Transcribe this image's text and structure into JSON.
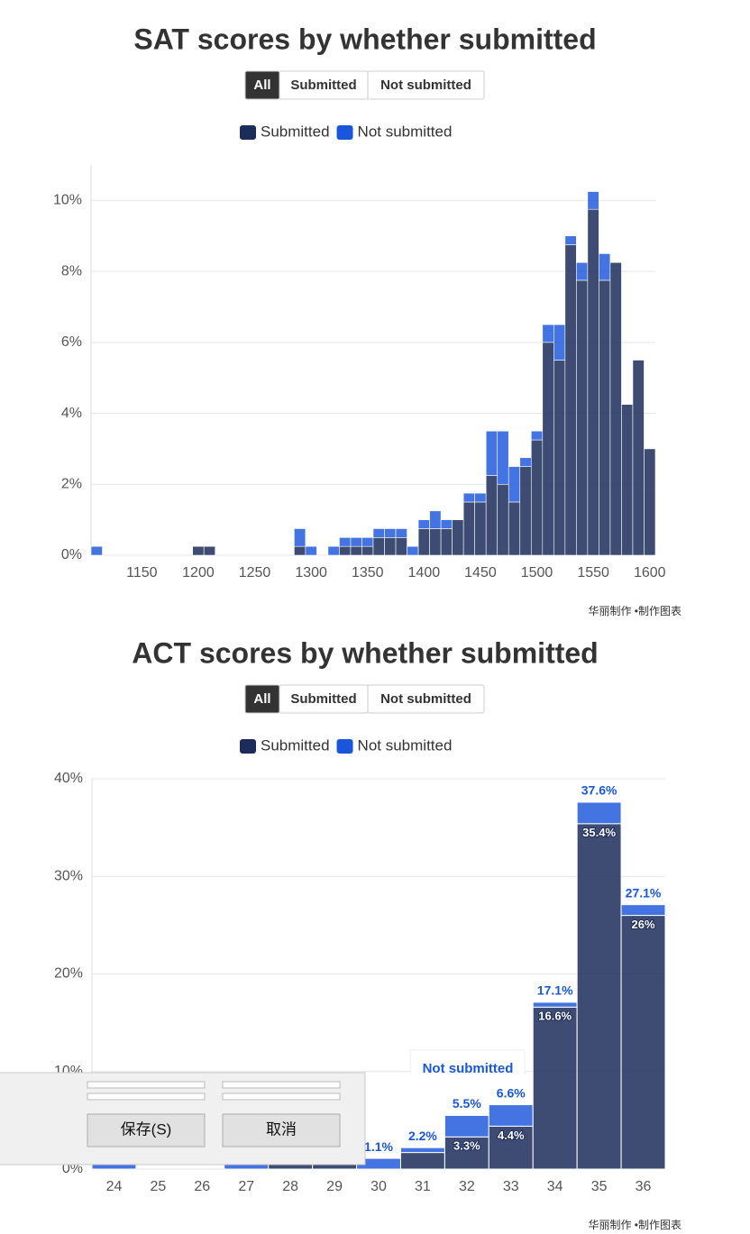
{
  "chart_data": [
    {
      "type": "histogram",
      "title": "SAT scores by whether submitted",
      "buttons": [
        "All",
        "Submitted",
        "Not submitted"
      ],
      "active_button": 0,
      "bins": [
        1105,
        1115,
        1125,
        1135,
        1145,
        1155,
        1165,
        1175,
        1185,
        1195,
        1205,
        1215,
        1225,
        1235,
        1245,
        1255,
        1265,
        1275,
        1285,
        1295,
        1305,
        1315,
        1325,
        1335,
        1345,
        1355,
        1365,
        1375,
        1385,
        1395,
        1405,
        1415,
        1425,
        1435,
        1445,
        1455,
        1465,
        1475,
        1485,
        1495,
        1505,
        1515,
        1525,
        1535,
        1545,
        1555,
        1565,
        1575,
        1585,
        1595,
        1605
      ],
      "series": [
        {
          "name": "Submitted",
          "color": "#1c2d5a",
          "values": [
            0,
            0,
            0,
            0,
            0,
            0,
            0,
            0,
            0,
            0.25,
            0.25,
            0,
            0,
            0,
            0,
            0,
            0,
            0,
            0.25,
            0,
            0,
            0,
            0.25,
            0.25,
            0.25,
            0.5,
            0.5,
            0.5,
            0,
            0.75,
            0.75,
            0.75,
            1,
            1.5,
            1.5,
            2.25,
            2,
            1.5,
            2.5,
            3.25,
            6,
            5.5,
            8.75,
            7.75,
            9.75,
            7.75,
            8.25,
            4.25,
            5.5,
            3
          ]
        },
        {
          "name": "Not submitted",
          "color": "#1a56db",
          "values": [
            0.25,
            0,
            0,
            0,
            0,
            0,
            0,
            0,
            0,
            0,
            0,
            0,
            0,
            0,
            0,
            0,
            0,
            0,
            0.5,
            0.25,
            0,
            0.25,
            0.25,
            0.25,
            0.25,
            0.25,
            0.25,
            0.25,
            0.25,
            0.25,
            0.5,
            0.25,
            0,
            0.25,
            0.25,
            1.25,
            1.5,
            1,
            0.25,
            0.25,
            0.5,
            1,
            0.25,
            0.5,
            0.5,
            0.75,
            0,
            0,
            0,
            0
          ]
        }
      ],
      "xlim": [
        1105,
        1605
      ],
      "xticks": [
        1150,
        1200,
        1250,
        1300,
        1350,
        1400,
        1450,
        1500,
        1550,
        1600
      ],
      "ylim": [
        0,
        11
      ],
      "yticks": [
        {
          "value": 0,
          "label": "0%"
        },
        {
          "value": 2,
          "label": "2%"
        },
        {
          "value": 4,
          "label": "4%"
        },
        {
          "value": 6,
          "label": "6%"
        },
        {
          "value": 8,
          "label": "8%"
        },
        {
          "value": 10,
          "label": "10%"
        }
      ],
      "grid": true,
      "stacked": true,
      "credit": "华丽制作 •制作图表"
    },
    {
      "type": "bar",
      "title": "ACT scores by whether submitted",
      "buttons": [
        "All",
        "Submitted",
        "Not submitted"
      ],
      "active_button": 0,
      "categories": [
        "24",
        "25",
        "26",
        "27",
        "28",
        "29",
        "30",
        "31",
        "32",
        "33",
        "34",
        "35",
        "36"
      ],
      "series": [
        {
          "name": "Submitted",
          "color": "#1c2d5a",
          "values": [
            0,
            0,
            0,
            0,
            0.5,
            0.5,
            0,
            1.7,
            3.3,
            4.4,
            16.6,
            35.4,
            26
          ],
          "value_labels": [
            null,
            null,
            null,
            null,
            null,
            null,
            null,
            null,
            "3.3%",
            "4.4%",
            "16.6%",
            "35.4%",
            "26%"
          ]
        },
        {
          "name": "Not submitted",
          "color": "#1a56db",
          "values": [
            0.5,
            0,
            0,
            0.5,
            0,
            0,
            1.1,
            0.5,
            2.2,
            2.2,
            0.5,
            2.2,
            1.1
          ]
        }
      ],
      "totals": [
        null,
        null,
        null,
        null,
        null,
        null,
        1.1,
        2.2,
        5.5,
        6.6,
        17.1,
        37.6,
        27.1
      ],
      "total_labels": [
        null,
        null,
        null,
        null,
        null,
        null,
        "1.1%",
        "2.2%",
        "5.5%",
        "6.6%",
        "17.1%",
        "37.6%",
        "27.1%"
      ],
      "ylim": [
        0,
        40
      ],
      "yticks": [
        {
          "value": 0,
          "label": "0%"
        },
        {
          "value": 10,
          "label": "10%"
        },
        {
          "value": 20,
          "label": "20%"
        },
        {
          "value": 30,
          "label": "30%"
        },
        {
          "value": 40,
          "label": "40%"
        }
      ],
      "grid": true,
      "stacked": true,
      "credit": "华丽制作 •制作图表"
    }
  ],
  "tooltip": {
    "title": "Not submitted"
  },
  "dialog": {
    "buttons": [
      "保存(S)",
      "取消"
    ]
  }
}
